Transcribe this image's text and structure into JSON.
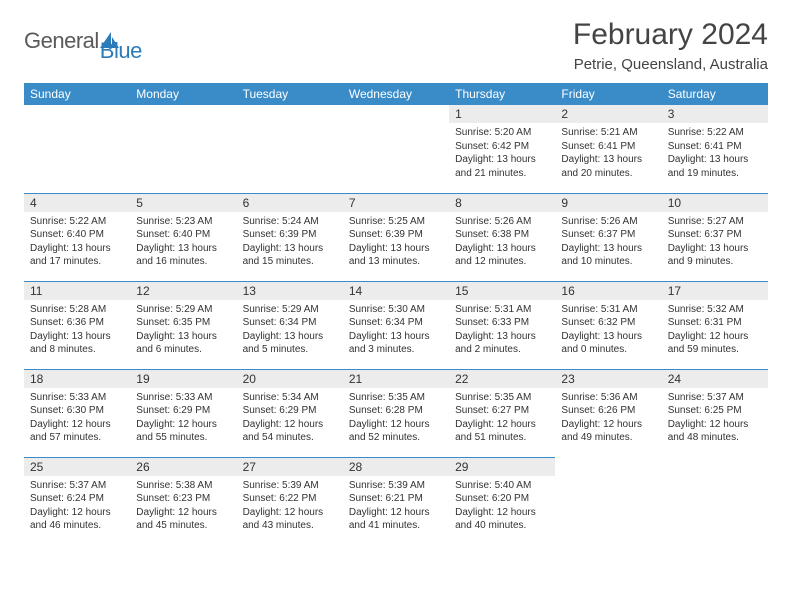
{
  "logo": {
    "text1": "General",
    "text2": "Blue"
  },
  "title": "February 2024",
  "location": "Petrie, Queensland, Australia",
  "colors": {
    "header_bg": "#3a8cc9",
    "header_text": "#ffffff",
    "daynum_bg": "#ececec",
    "text": "#333333",
    "row_border": "#3a8cc9",
    "logo_gray": "#5a5a5a",
    "logo_blue": "#2b7bb9"
  },
  "weekdays": [
    "Sunday",
    "Monday",
    "Tuesday",
    "Wednesday",
    "Thursday",
    "Friday",
    "Saturday"
  ],
  "first_day_index": 4,
  "days": [
    {
      "n": "1",
      "sunrise": "5:20 AM",
      "sunset": "6:42 PM",
      "daylight_hours": 13,
      "daylight_minutes": 21
    },
    {
      "n": "2",
      "sunrise": "5:21 AM",
      "sunset": "6:41 PM",
      "daylight_hours": 13,
      "daylight_minutes": 20
    },
    {
      "n": "3",
      "sunrise": "5:22 AM",
      "sunset": "6:41 PM",
      "daylight_hours": 13,
      "daylight_minutes": 19
    },
    {
      "n": "4",
      "sunrise": "5:22 AM",
      "sunset": "6:40 PM",
      "daylight_hours": 13,
      "daylight_minutes": 17
    },
    {
      "n": "5",
      "sunrise": "5:23 AM",
      "sunset": "6:40 PM",
      "daylight_hours": 13,
      "daylight_minutes": 16
    },
    {
      "n": "6",
      "sunrise": "5:24 AM",
      "sunset": "6:39 PM",
      "daylight_hours": 13,
      "daylight_minutes": 15
    },
    {
      "n": "7",
      "sunrise": "5:25 AM",
      "sunset": "6:39 PM",
      "daylight_hours": 13,
      "daylight_minutes": 13
    },
    {
      "n": "8",
      "sunrise": "5:26 AM",
      "sunset": "6:38 PM",
      "daylight_hours": 13,
      "daylight_minutes": 12
    },
    {
      "n": "9",
      "sunrise": "5:26 AM",
      "sunset": "6:37 PM",
      "daylight_hours": 13,
      "daylight_minutes": 10
    },
    {
      "n": "10",
      "sunrise": "5:27 AM",
      "sunset": "6:37 PM",
      "daylight_hours": 13,
      "daylight_minutes": 9
    },
    {
      "n": "11",
      "sunrise": "5:28 AM",
      "sunset": "6:36 PM",
      "daylight_hours": 13,
      "daylight_minutes": 8
    },
    {
      "n": "12",
      "sunrise": "5:29 AM",
      "sunset": "6:35 PM",
      "daylight_hours": 13,
      "daylight_minutes": 6
    },
    {
      "n": "13",
      "sunrise": "5:29 AM",
      "sunset": "6:34 PM",
      "daylight_hours": 13,
      "daylight_minutes": 5
    },
    {
      "n": "14",
      "sunrise": "5:30 AM",
      "sunset": "6:34 PM",
      "daylight_hours": 13,
      "daylight_minutes": 3
    },
    {
      "n": "15",
      "sunrise": "5:31 AM",
      "sunset": "6:33 PM",
      "daylight_hours": 13,
      "daylight_minutes": 2
    },
    {
      "n": "16",
      "sunrise": "5:31 AM",
      "sunset": "6:32 PM",
      "daylight_hours": 13,
      "daylight_minutes": 0
    },
    {
      "n": "17",
      "sunrise": "5:32 AM",
      "sunset": "6:31 PM",
      "daylight_hours": 12,
      "daylight_minutes": 59
    },
    {
      "n": "18",
      "sunrise": "5:33 AM",
      "sunset": "6:30 PM",
      "daylight_hours": 12,
      "daylight_minutes": 57
    },
    {
      "n": "19",
      "sunrise": "5:33 AM",
      "sunset": "6:29 PM",
      "daylight_hours": 12,
      "daylight_minutes": 55
    },
    {
      "n": "20",
      "sunrise": "5:34 AM",
      "sunset": "6:29 PM",
      "daylight_hours": 12,
      "daylight_minutes": 54
    },
    {
      "n": "21",
      "sunrise": "5:35 AM",
      "sunset": "6:28 PM",
      "daylight_hours": 12,
      "daylight_minutes": 52
    },
    {
      "n": "22",
      "sunrise": "5:35 AM",
      "sunset": "6:27 PM",
      "daylight_hours": 12,
      "daylight_minutes": 51
    },
    {
      "n": "23",
      "sunrise": "5:36 AM",
      "sunset": "6:26 PM",
      "daylight_hours": 12,
      "daylight_minutes": 49
    },
    {
      "n": "24",
      "sunrise": "5:37 AM",
      "sunset": "6:25 PM",
      "daylight_hours": 12,
      "daylight_minutes": 48
    },
    {
      "n": "25",
      "sunrise": "5:37 AM",
      "sunset": "6:24 PM",
      "daylight_hours": 12,
      "daylight_minutes": 46
    },
    {
      "n": "26",
      "sunrise": "5:38 AM",
      "sunset": "6:23 PM",
      "daylight_hours": 12,
      "daylight_minutes": 45
    },
    {
      "n": "27",
      "sunrise": "5:39 AM",
      "sunset": "6:22 PM",
      "daylight_hours": 12,
      "daylight_minutes": 43
    },
    {
      "n": "28",
      "sunrise": "5:39 AM",
      "sunset": "6:21 PM",
      "daylight_hours": 12,
      "daylight_minutes": 41
    },
    {
      "n": "29",
      "sunrise": "5:40 AM",
      "sunset": "6:20 PM",
      "daylight_hours": 12,
      "daylight_minutes": 40
    }
  ],
  "labels": {
    "sunrise_prefix": "Sunrise: ",
    "sunset_prefix": "Sunset: ",
    "daylight_prefix": "Daylight: ",
    "hours_word": " hours",
    "and_word": "and ",
    "minutes_word": " minutes."
  }
}
